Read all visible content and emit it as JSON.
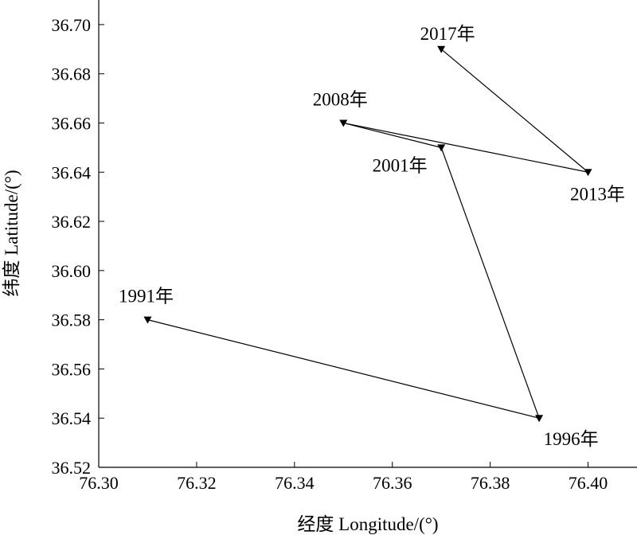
{
  "chart_data": {
    "type": "line",
    "title": "",
    "xlabel": "经度 Longitude/(°)",
    "ylabel": "纬度 Latitude/(°)",
    "xlim": [
      76.3,
      76.41
    ],
    "ylim": [
      36.52,
      36.71
    ],
    "x_ticks": [
      "76.30",
      "76.32",
      "76.34",
      "76.36",
      "76.38",
      "76.40"
    ],
    "y_ticks": [
      "36.52",
      "36.54",
      "36.56",
      "36.58",
      "36.60",
      "36.62",
      "36.64",
      "36.66",
      "36.68",
      "36.70"
    ],
    "marker": "triangle-down",
    "grid": false,
    "points": [
      {
        "label": "1991年",
        "x": 76.31,
        "y": 36.58
      },
      {
        "label": "1996年",
        "x": 76.39,
        "y": 36.54
      },
      {
        "label": "2001年",
        "x": 76.37,
        "y": 36.65
      },
      {
        "label": "2008年",
        "x": 76.35,
        "y": 36.66
      },
      {
        "label": "2013年",
        "x": 76.4,
        "y": 36.64
      },
      {
        "label": "2017年",
        "x": 76.37,
        "y": 36.69
      }
    ]
  }
}
